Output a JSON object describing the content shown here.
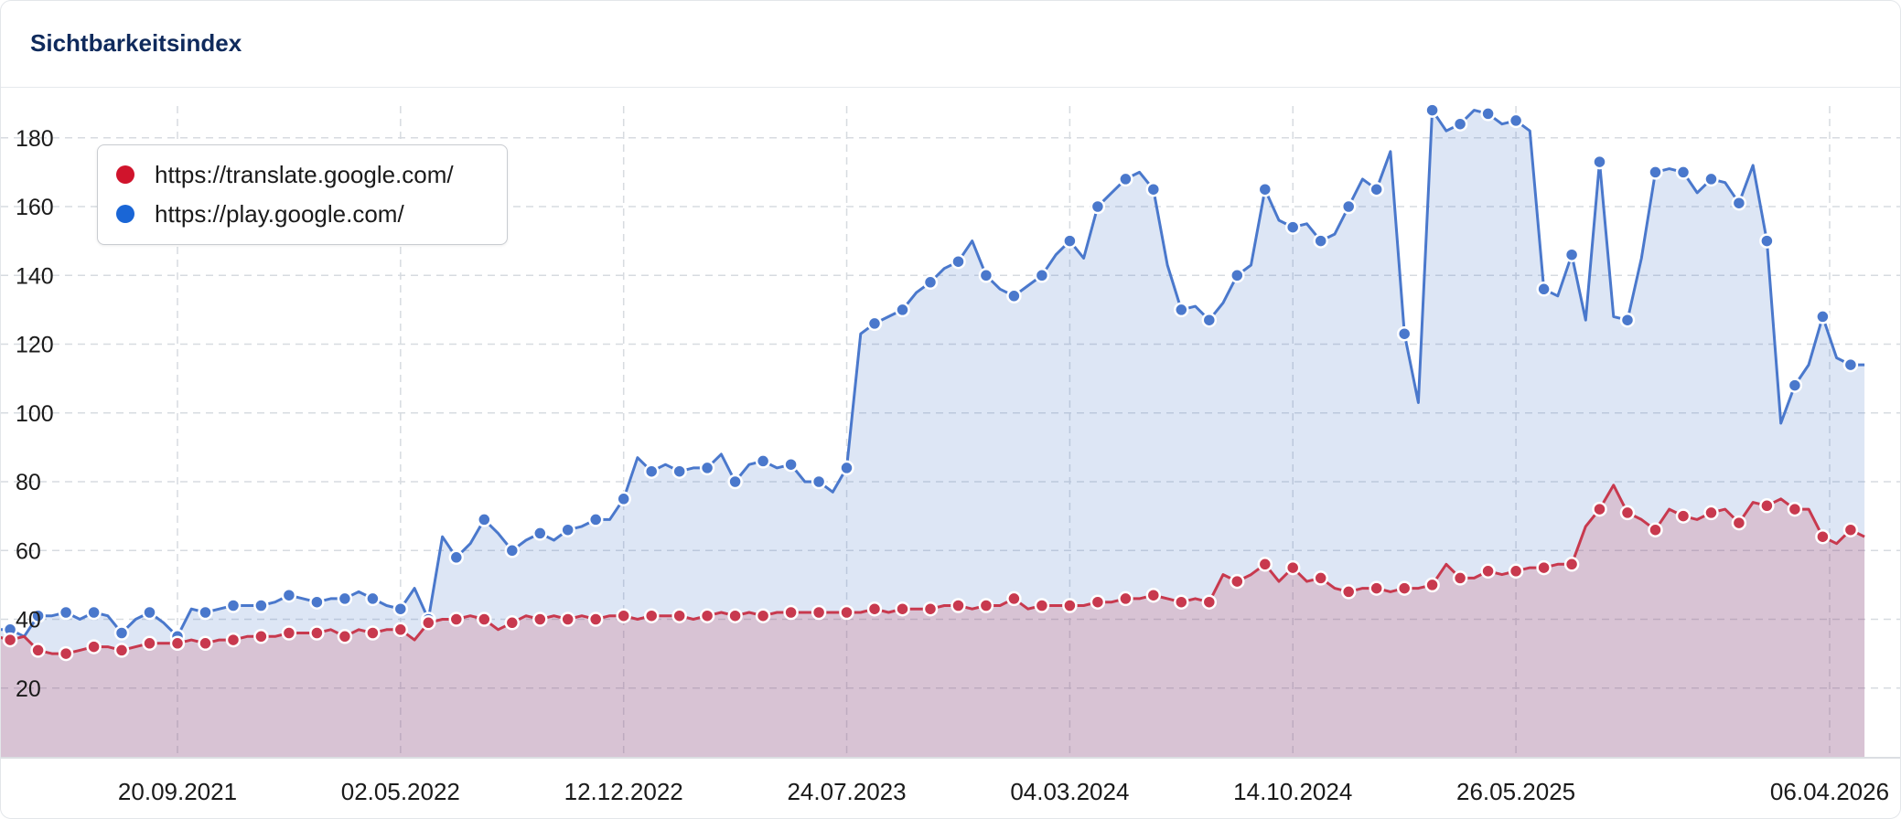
{
  "header": {
    "title": "Sichtbarkeitsindex"
  },
  "colors": {
    "translate": "#d0142c",
    "play": "#1a66d6",
    "play_line": "#4a78cc",
    "translate_line": "#c8394e"
  },
  "chart_data": {
    "type": "area",
    "title": "Sichtbarkeitsindex",
    "xlabel": "",
    "ylabel": "",
    "ylim": [
      0,
      190
    ],
    "yticks": [
      20,
      40,
      60,
      80,
      100,
      120,
      140,
      160,
      180
    ],
    "x_tick_labels": [
      "20.09.2021",
      "02.05.2022",
      "12.12.2022",
      "24.07.2023",
      "04.03.2024",
      "14.10.2024",
      "26.05.2025",
      "06.04.2026"
    ],
    "x_ticks": [
      "2021-09-20",
      "2022-05-02",
      "2022-12-12",
      "2023-07-24",
      "2024-03-04",
      "2024-10-14",
      "2025-05-26",
      "2026-04-06"
    ],
    "x_range": [
      "2021-03-08",
      "2026-05-11"
    ],
    "grid": true,
    "legend_position": "top-left",
    "series": [
      {
        "name": "https://translate.google.com/",
        "color": "#d0142c",
        "points": [
          [
            "2021-03-08",
            34
          ],
          [
            "2021-03-22",
            35
          ],
          [
            "2021-04-05",
            34
          ],
          [
            "2021-04-19",
            35
          ],
          [
            "2021-05-03",
            31
          ],
          [
            "2021-05-17",
            30
          ],
          [
            "2021-05-31",
            30
          ],
          [
            "2021-06-14",
            31
          ],
          [
            "2021-06-28",
            32
          ],
          [
            "2021-07-12",
            32
          ],
          [
            "2021-07-26",
            31
          ],
          [
            "2021-08-09",
            32
          ],
          [
            "2021-08-23",
            33
          ],
          [
            "2021-09-06",
            33
          ],
          [
            "2021-09-20",
            33
          ],
          [
            "2021-10-04",
            34
          ],
          [
            "2021-10-18",
            33
          ],
          [
            "2021-11-01",
            34
          ],
          [
            "2021-11-15",
            34
          ],
          [
            "2021-11-29",
            35
          ],
          [
            "2021-12-13",
            35
          ],
          [
            "2021-12-27",
            35
          ],
          [
            "2022-01-10",
            36
          ],
          [
            "2022-01-24",
            36
          ],
          [
            "2022-02-07",
            36
          ],
          [
            "2022-02-21",
            37
          ],
          [
            "2022-03-07",
            35
          ],
          [
            "2022-03-21",
            37
          ],
          [
            "2022-04-04",
            36
          ],
          [
            "2022-04-18",
            37
          ],
          [
            "2022-05-02",
            37
          ],
          [
            "2022-05-16",
            34
          ],
          [
            "2022-05-30",
            39
          ],
          [
            "2022-06-13",
            40
          ],
          [
            "2022-06-27",
            40
          ],
          [
            "2022-07-11",
            41
          ],
          [
            "2022-07-25",
            40
          ],
          [
            "2022-08-08",
            37
          ],
          [
            "2022-08-22",
            39
          ],
          [
            "2022-09-05",
            41
          ],
          [
            "2022-09-19",
            40
          ],
          [
            "2022-10-03",
            41
          ],
          [
            "2022-10-17",
            40
          ],
          [
            "2022-10-31",
            41
          ],
          [
            "2022-11-14",
            40
          ],
          [
            "2022-11-28",
            41
          ],
          [
            "2022-12-12",
            41
          ],
          [
            "2022-12-26",
            40
          ],
          [
            "2023-01-09",
            41
          ],
          [
            "2023-01-23",
            41
          ],
          [
            "2023-02-06",
            41
          ],
          [
            "2023-02-20",
            40
          ],
          [
            "2023-03-06",
            41
          ],
          [
            "2023-03-20",
            42
          ],
          [
            "2023-04-03",
            41
          ],
          [
            "2023-04-17",
            42
          ],
          [
            "2023-05-01",
            41
          ],
          [
            "2023-05-15",
            42
          ],
          [
            "2023-05-29",
            42
          ],
          [
            "2023-06-12",
            42
          ],
          [
            "2023-06-26",
            42
          ],
          [
            "2023-07-10",
            42
          ],
          [
            "2023-07-24",
            42
          ],
          [
            "2023-08-07",
            42
          ],
          [
            "2023-08-21",
            43
          ],
          [
            "2023-09-04",
            42
          ],
          [
            "2023-09-18",
            43
          ],
          [
            "2023-10-02",
            43
          ],
          [
            "2023-10-16",
            43
          ],
          [
            "2023-10-30",
            44
          ],
          [
            "2023-11-13",
            44
          ],
          [
            "2023-11-27",
            43
          ],
          [
            "2023-12-11",
            44
          ],
          [
            "2023-12-25",
            44
          ],
          [
            "2024-01-08",
            46
          ],
          [
            "2024-01-22",
            43
          ],
          [
            "2024-02-05",
            44
          ],
          [
            "2024-02-19",
            44
          ],
          [
            "2024-03-04",
            44
          ],
          [
            "2024-03-18",
            44
          ],
          [
            "2024-04-01",
            45
          ],
          [
            "2024-04-15",
            45
          ],
          [
            "2024-04-29",
            46
          ],
          [
            "2024-05-13",
            46
          ],
          [
            "2024-05-27",
            47
          ],
          [
            "2024-06-10",
            46
          ],
          [
            "2024-06-24",
            45
          ],
          [
            "2024-07-08",
            46
          ],
          [
            "2024-07-22",
            45
          ],
          [
            "2024-08-05",
            53
          ],
          [
            "2024-08-19",
            51
          ],
          [
            "2024-09-02",
            53
          ],
          [
            "2024-09-16",
            56
          ],
          [
            "2024-09-30",
            51
          ],
          [
            "2024-10-14",
            55
          ],
          [
            "2024-10-28",
            51
          ],
          [
            "2024-11-11",
            52
          ],
          [
            "2024-11-25",
            49
          ],
          [
            "2024-12-09",
            48
          ],
          [
            "2024-12-23",
            49
          ],
          [
            "2025-01-06",
            49
          ],
          [
            "2025-01-20",
            48
          ],
          [
            "2025-02-03",
            49
          ],
          [
            "2025-02-17",
            49
          ],
          [
            "2025-03-03",
            50
          ],
          [
            "2025-03-17",
            56
          ],
          [
            "2025-03-31",
            52
          ],
          [
            "2025-04-14",
            52
          ],
          [
            "2025-04-28",
            54
          ],
          [
            "2025-05-12",
            53
          ],
          [
            "2025-05-26",
            54
          ],
          [
            "2025-06-09",
            55
          ],
          [
            "2025-06-23",
            55
          ],
          [
            "2025-07-07",
            56
          ],
          [
            "2025-07-21",
            56
          ],
          [
            "2025-08-04",
            67
          ],
          [
            "2025-08-18",
            72
          ],
          [
            "2025-09-01",
            79
          ],
          [
            "2025-09-15",
            71
          ],
          [
            "2025-09-29",
            69
          ],
          [
            "2025-10-13",
            66
          ],
          [
            "2025-10-27",
            72
          ],
          [
            "2025-11-10",
            70
          ],
          [
            "2025-11-24",
            69
          ],
          [
            "2025-12-08",
            71
          ],
          [
            "2025-12-22",
            72
          ],
          [
            "2026-01-05",
            68
          ],
          [
            "2026-01-19",
            74
          ],
          [
            "2026-02-02",
            73
          ],
          [
            "2026-02-16",
            75
          ],
          [
            "2026-03-02",
            72
          ],
          [
            "2026-03-16",
            72
          ],
          [
            "2026-03-30",
            64
          ],
          [
            "2026-04-13",
            62
          ],
          [
            "2026-04-27",
            66
          ],
          [
            "2026-05-11",
            64
          ]
        ]
      },
      {
        "name": "https://play.google.com/",
        "color": "#1a66d6",
        "points": [
          [
            "2021-03-08",
            33
          ],
          [
            "2021-03-22",
            37
          ],
          [
            "2021-04-05",
            37
          ],
          [
            "2021-04-19",
            35
          ],
          [
            "2021-05-03",
            41
          ],
          [
            "2021-05-17",
            41
          ],
          [
            "2021-05-31",
            42
          ],
          [
            "2021-06-14",
            40
          ],
          [
            "2021-06-28",
            42
          ],
          [
            "2021-07-12",
            41
          ],
          [
            "2021-07-26",
            36
          ],
          [
            "2021-08-09",
            40
          ],
          [
            "2021-08-23",
            42
          ],
          [
            "2021-09-06",
            39
          ],
          [
            "2021-09-20",
            35
          ],
          [
            "2021-10-04",
            43
          ],
          [
            "2021-10-18",
            42
          ],
          [
            "2021-11-01",
            43
          ],
          [
            "2021-11-15",
            44
          ],
          [
            "2021-11-29",
            44
          ],
          [
            "2021-12-13",
            44
          ],
          [
            "2021-12-27",
            45
          ],
          [
            "2022-01-10",
            47
          ],
          [
            "2022-01-24",
            46
          ],
          [
            "2022-02-07",
            45
          ],
          [
            "2022-02-21",
            46
          ],
          [
            "2022-03-07",
            46
          ],
          [
            "2022-03-21",
            48
          ],
          [
            "2022-04-04",
            46
          ],
          [
            "2022-04-18",
            44
          ],
          [
            "2022-05-02",
            43
          ],
          [
            "2022-05-16",
            49
          ],
          [
            "2022-05-30",
            40
          ],
          [
            "2022-06-13",
            64
          ],
          [
            "2022-06-27",
            58
          ],
          [
            "2022-07-11",
            62
          ],
          [
            "2022-07-25",
            69
          ],
          [
            "2022-08-08",
            65
          ],
          [
            "2022-08-22",
            60
          ],
          [
            "2022-09-05",
            63
          ],
          [
            "2022-09-19",
            65
          ],
          [
            "2022-10-03",
            63
          ],
          [
            "2022-10-17",
            66
          ],
          [
            "2022-10-31",
            67
          ],
          [
            "2022-11-14",
            69
          ],
          [
            "2022-11-28",
            69
          ],
          [
            "2022-12-12",
            75
          ],
          [
            "2022-12-26",
            87
          ],
          [
            "2023-01-09",
            83
          ],
          [
            "2023-01-23",
            85
          ],
          [
            "2023-02-06",
            83
          ],
          [
            "2023-02-20",
            84
          ],
          [
            "2023-03-06",
            84
          ],
          [
            "2023-03-20",
            88
          ],
          [
            "2023-04-03",
            80
          ],
          [
            "2023-04-17",
            85
          ],
          [
            "2023-05-01",
            86
          ],
          [
            "2023-05-15",
            84
          ],
          [
            "2023-05-29",
            85
          ],
          [
            "2023-06-12",
            80
          ],
          [
            "2023-06-26",
            80
          ],
          [
            "2023-07-10",
            77
          ],
          [
            "2023-07-24",
            84
          ],
          [
            "2023-08-07",
            123
          ],
          [
            "2023-08-21",
            126
          ],
          [
            "2023-09-04",
            128
          ],
          [
            "2023-09-18",
            130
          ],
          [
            "2023-10-02",
            135
          ],
          [
            "2023-10-16",
            138
          ],
          [
            "2023-10-30",
            142
          ],
          [
            "2023-11-13",
            144
          ],
          [
            "2023-11-27",
            150
          ],
          [
            "2023-12-11",
            140
          ],
          [
            "2023-12-25",
            136
          ],
          [
            "2024-01-08",
            134
          ],
          [
            "2024-01-22",
            137
          ],
          [
            "2024-02-05",
            140
          ],
          [
            "2024-02-19",
            146
          ],
          [
            "2024-03-04",
            150
          ],
          [
            "2024-03-18",
            145
          ],
          [
            "2024-04-01",
            160
          ],
          [
            "2024-04-15",
            164
          ],
          [
            "2024-04-29",
            168
          ],
          [
            "2024-05-13",
            170
          ],
          [
            "2024-05-27",
            165
          ],
          [
            "2024-06-10",
            143
          ],
          [
            "2024-06-24",
            130
          ],
          [
            "2024-07-08",
            131
          ],
          [
            "2024-07-22",
            127
          ],
          [
            "2024-08-05",
            132
          ],
          [
            "2024-08-19",
            140
          ],
          [
            "2024-09-02",
            143
          ],
          [
            "2024-09-16",
            165
          ],
          [
            "2024-09-30",
            156
          ],
          [
            "2024-10-14",
            154
          ],
          [
            "2024-10-28",
            155
          ],
          [
            "2024-11-11",
            150
          ],
          [
            "2024-11-25",
            152
          ],
          [
            "2024-12-09",
            160
          ],
          [
            "2024-12-23",
            168
          ],
          [
            "2025-01-06",
            165
          ],
          [
            "2025-01-20",
            176
          ],
          [
            "2025-02-03",
            123
          ],
          [
            "2025-02-17",
            103
          ],
          [
            "2025-03-03",
            188
          ],
          [
            "2025-03-17",
            182
          ],
          [
            "2025-03-31",
            184
          ],
          [
            "2025-04-14",
            188
          ],
          [
            "2025-04-28",
            187
          ],
          [
            "2025-05-12",
            184
          ],
          [
            "2025-05-26",
            185
          ],
          [
            "2025-06-09",
            182
          ],
          [
            "2025-06-23",
            136
          ],
          [
            "2025-07-07",
            134
          ],
          [
            "2025-07-21",
            146
          ],
          [
            "2025-08-04",
            127
          ],
          [
            "2025-08-18",
            173
          ],
          [
            "2025-09-01",
            128
          ],
          [
            "2025-09-15",
            127
          ],
          [
            "2025-09-29",
            145
          ],
          [
            "2025-10-13",
            170
          ],
          [
            "2025-10-27",
            171
          ],
          [
            "2025-11-10",
            170
          ],
          [
            "2025-11-24",
            164
          ],
          [
            "2025-12-08",
            168
          ],
          [
            "2025-12-22",
            167
          ],
          [
            "2026-01-05",
            161
          ],
          [
            "2026-01-19",
            172
          ],
          [
            "2026-02-02",
            150
          ],
          [
            "2026-02-16",
            97
          ],
          [
            "2026-03-02",
            108
          ],
          [
            "2026-03-16",
            114
          ],
          [
            "2026-03-30",
            128
          ],
          [
            "2026-04-13",
            116
          ],
          [
            "2026-04-27",
            114
          ],
          [
            "2026-05-11",
            114
          ]
        ]
      }
    ]
  }
}
